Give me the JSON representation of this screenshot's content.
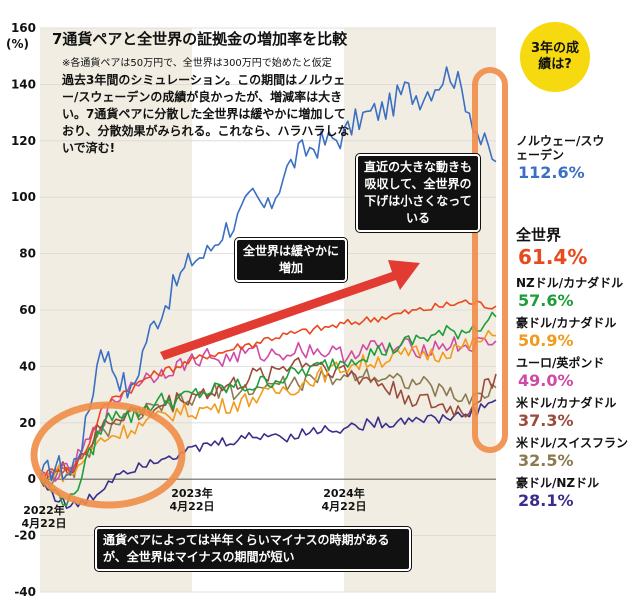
{
  "title": "7通貨ペアと全世界の証拠金の増加率を比較",
  "subnote": "※各通貨ペアは50万円で、全世界は300万円で始めたと仮定",
  "description": "過去3年間のシミュレーション。この期間はノルウェー/スウェーデンの成績が良かったが、増減率は大きい。7通貨ペアに分散した全世界は緩やかに増加しており、分散効果がみられる。これなら、ハラハラしないで済む!",
  "badge": "3年の成績は?",
  "callouts": {
    "recent": "直近の大きな動きも吸収して、全世界の下げは小さくなっている",
    "gradual": "全世界は緩やかに増加",
    "negative": "通貨ペアによっては半年くらいマイナスの時期があるが、全世界はマイナスの期間が短い"
  },
  "colors": {
    "norway": "#3a6fc4",
    "world": "#e8491d",
    "nzd_cad": "#1e9e3a",
    "aud_cad": "#f29a1c",
    "eur_gbp": "#cf4aa6",
    "usd_cad": "#9b4b3a",
    "usd_chf": "#8a7a4e",
    "aud_nzd": "#3a2e8c",
    "arrow": "#e23b32",
    "highlight": "#ef8c47",
    "shade": "#f1ede2"
  },
  "chart_data": {
    "type": "line",
    "ylabel": "(%)",
    "ylim": [
      -40,
      160
    ],
    "yticks": [
      -40,
      -20,
      0,
      20,
      40,
      60,
      80,
      100,
      120,
      140,
      160
    ],
    "ytick_labels": [
      "-40",
      "-20",
      "0",
      "20",
      "40",
      "60",
      "80",
      "100",
      "120",
      "140",
      "160"
    ],
    "xlim": [
      0,
      3
    ],
    "x_unit": "years since 2022年4月22日",
    "xtick_labels": [
      {
        "x": 0,
        "label": "2022年4月22日"
      },
      {
        "x": 1,
        "label": "2023年4月22日"
      },
      {
        "x": 2,
        "label": "2024年4月22日"
      }
    ],
    "x": [
      0,
      0.1,
      0.2,
      0.3,
      0.4,
      0.5,
      0.6,
      0.7,
      0.8,
      0.9,
      1.0,
      1.1,
      1.2,
      1.3,
      1.4,
      1.5,
      1.6,
      1.7,
      1.8,
      1.9,
      2.0,
      2.1,
      2.2,
      2.3,
      2.4,
      2.5,
      2.6,
      2.7,
      2.8,
      2.9,
      3.0
    ],
    "series": [
      {
        "name": "ノルウェー/スウェーデン",
        "final": "112.6%",
        "color_key": "norway",
        "values": [
          0,
          5,
          2,
          18,
          48,
          38,
          30,
          50,
          60,
          70,
          78,
          80,
          88,
          92,
          100,
          95,
          108,
          115,
          118,
          120,
          122,
          128,
          130,
          132,
          138,
          136,
          140,
          145,
          135,
          120,
          112.6
        ]
      },
      {
        "name": "全世界",
        "final": "61.4%",
        "color_key": "world",
        "values": [
          0,
          4,
          3,
          10,
          24,
          30,
          32,
          36,
          38,
          40,
          42,
          44,
          45,
          47,
          48,
          50,
          51,
          52,
          53,
          54,
          55,
          56,
          57,
          58,
          59,
          60,
          61,
          62,
          63,
          62,
          61.4
        ]
      },
      {
        "name": "NZドル/カナダドル",
        "final": "57.6%",
        "color_key": "nzd_cad",
        "values": [
          0,
          -5,
          -8,
          5,
          18,
          25,
          22,
          26,
          28,
          28,
          30,
          31,
          32,
          33,
          33,
          35,
          36,
          38,
          39,
          41,
          42,
          44,
          45,
          46,
          48,
          50,
          51,
          52,
          53,
          55,
          57.6
        ]
      },
      {
        "name": "豪ドル/カナダドル",
        "final": "50.9%",
        "color_key": "aud_cad",
        "values": [
          0,
          3,
          1,
          8,
          14,
          16,
          18,
          20,
          22,
          24,
          24,
          25,
          26,
          27,
          29,
          30,
          32,
          33,
          36,
          38,
          40,
          41,
          42,
          43,
          44,
          45,
          44,
          46,
          47,
          49,
          50.9
        ]
      },
      {
        "name": "ユーロ/英ポンド",
        "final": "49.0%",
        "color_key": "eur_gbp",
        "values": [
          0,
          2,
          3,
          12,
          20,
          28,
          34,
          36,
          38,
          40,
          42,
          44,
          42,
          44,
          45,
          44,
          45,
          46,
          46,
          45,
          44,
          46,
          47,
          46,
          47,
          46,
          47,
          48,
          47,
          48,
          49.0
        ]
      },
      {
        "name": "米ドル/カナダドル",
        "final": "37.3%",
        "color_key": "usd_cad",
        "values": [
          0,
          2,
          4,
          10,
          18,
          22,
          24,
          24,
          26,
          28,
          30,
          31,
          32,
          34,
          36,
          38,
          40,
          42,
          41,
          40,
          38,
          36,
          35,
          32,
          30,
          28,
          26,
          25,
          24,
          30,
          37.3
        ]
      },
      {
        "name": "米ドル/スイスフラン",
        "final": "32.5%",
        "color_key": "usd_chf",
        "values": [
          0,
          1,
          2,
          8,
          16,
          20,
          22,
          24,
          25,
          27,
          28,
          30,
          32,
          31,
          32,
          33,
          34,
          34,
          35,
          36,
          36,
          38,
          37,
          36,
          35,
          34,
          32,
          30,
          28,
          30,
          32.5
        ]
      },
      {
        "name": "豪ドル/NZドル",
        "final": "28.1%",
        "color_key": "aud_nzd",
        "values": [
          0,
          -6,
          -10,
          -8,
          -4,
          2,
          4,
          6,
          8,
          9,
          10,
          12,
          13,
          14,
          15,
          16,
          15,
          16,
          17,
          18,
          18,
          19,
          20,
          20,
          21,
          22,
          21,
          22,
          23,
          25,
          28.1
        ]
      }
    ]
  }
}
